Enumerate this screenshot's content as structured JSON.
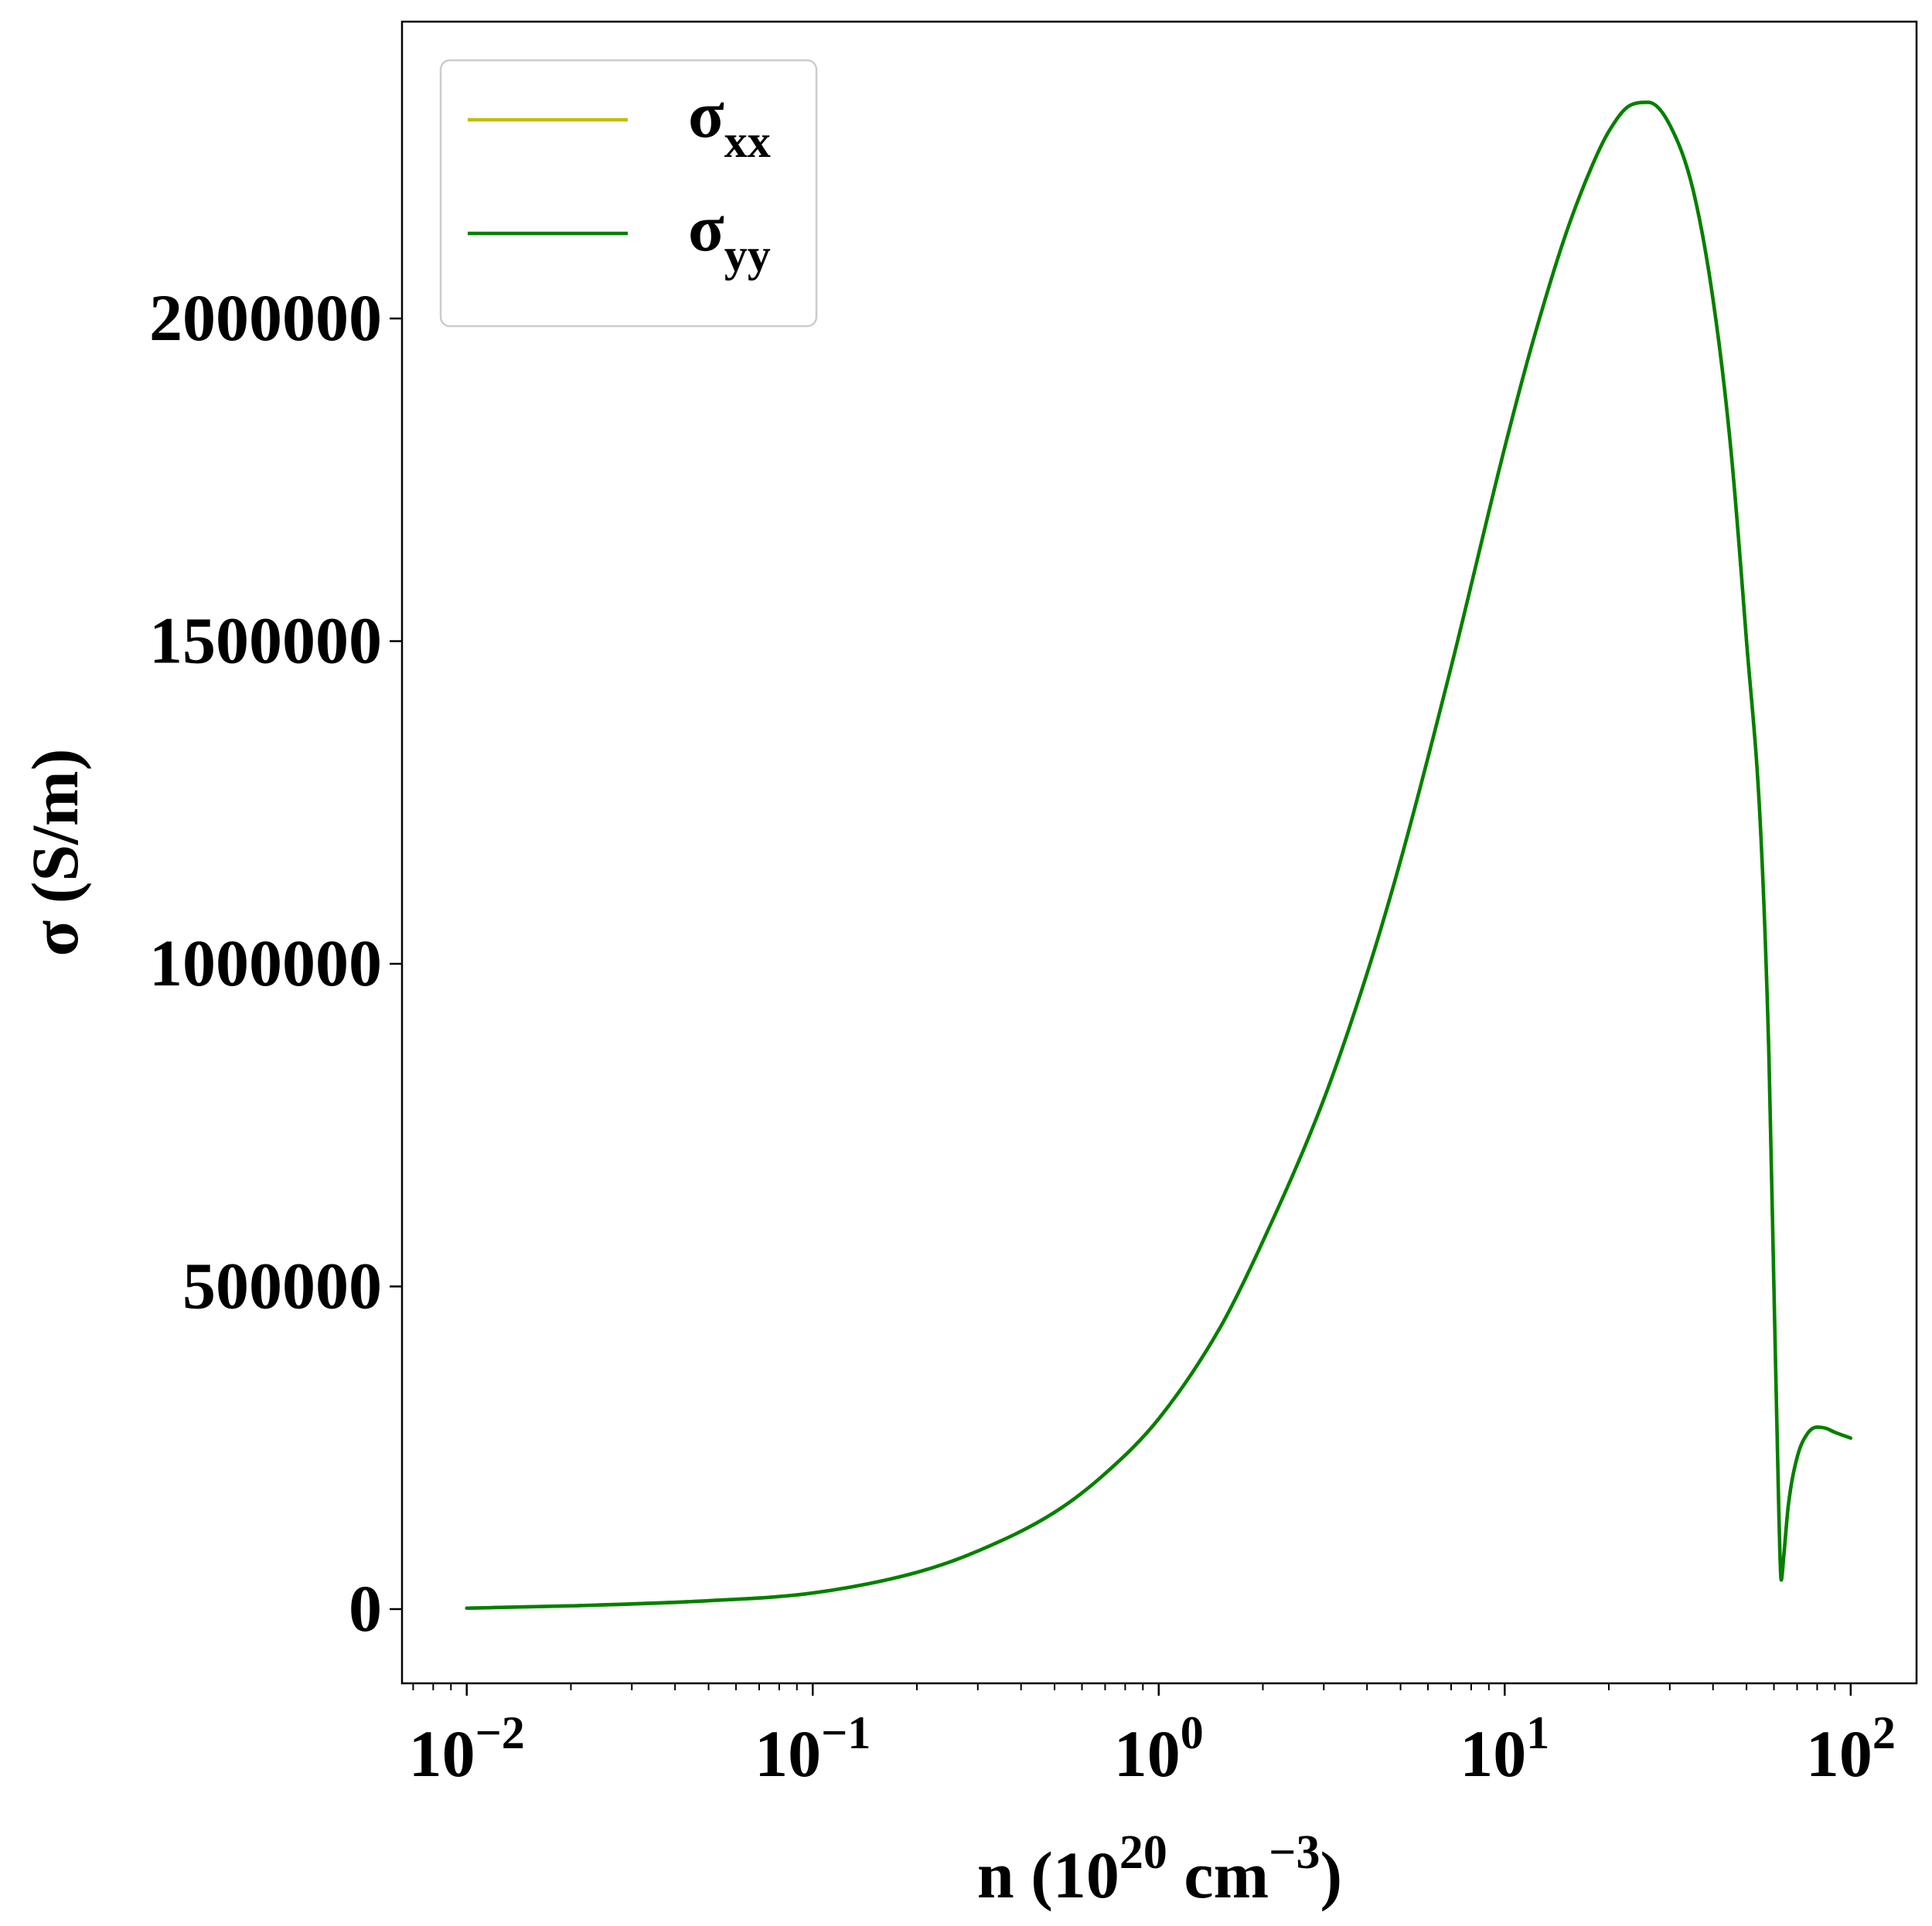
{
  "chart_data": {
    "type": "line",
    "xlabel": {
      "base": "n (10",
      "exp1": "20",
      "mid": " cm",
      "exp2": "−3",
      "tail": ")"
    },
    "ylabel": "σ (S/m)",
    "x_scale": "log",
    "xlim": [
      0.0065,
      155
    ],
    "ylim": [
      -115000,
      2460000
    ],
    "x_ticks": [
      {
        "value": 0.01,
        "base": "10",
        "exp": "−2"
      },
      {
        "value": 0.1,
        "base": "10",
        "exp": "−1"
      },
      {
        "value": 1,
        "base": "10",
        "exp": "0"
      },
      {
        "value": 10,
        "base": "10",
        "exp": "1"
      },
      {
        "value": 100,
        "base": "10",
        "exp": "2"
      }
    ],
    "y_ticks": [
      {
        "value": 0,
        "label": "0"
      },
      {
        "value": 500000,
        "label": "500000"
      },
      {
        "value": 1000000,
        "label": "1000000"
      },
      {
        "value": 1500000,
        "label": "1500000"
      },
      {
        "value": 2000000,
        "label": "2000000"
      }
    ],
    "grid": false,
    "legend_position": "top-left",
    "series": [
      {
        "name": "σ",
        "subscript": "xx",
        "color": "#bfbf00",
        "x": [
          0.01,
          0.02,
          0.05,
          0.1,
          0.2,
          0.3,
          0.5,
          0.7,
          1.0,
          1.5,
          2.0,
          3.0,
          4.0,
          5.0,
          7.0,
          10.0,
          12.0,
          15.0,
          18.0,
          20.0,
          23.0,
          26.0,
          30.0,
          35.0,
          40.0,
          45.0,
          50.0,
          55.0,
          58.0,
          60.0,
          62.0,
          63.0,
          64.0,
          66.0,
          70.0,
          75.0,
          80.0,
          85.0,
          90.0,
          100.0
        ],
        "y": [
          1500,
          5000,
          13000,
          25000,
          57000,
          90000,
          150000,
          210000,
          295000,
          435000,
          570000,
          790000,
          985000,
          1160000,
          1460000,
          1800000,
          1960000,
          2130000,
          2240000,
          2290000,
          2330000,
          2335000,
          2300000,
          2200000,
          2030000,
          1800000,
          1500000,
          1200000,
          860000,
          500000,
          150000,
          45000,
          80000,
          160000,
          235000,
          272000,
          282000,
          280000,
          274000,
          265000
        ]
      },
      {
        "name": "σ",
        "subscript": "yy",
        "color": "#008000",
        "x": [
          0.01,
          0.02,
          0.05,
          0.1,
          0.2,
          0.3,
          0.5,
          0.7,
          1.0,
          1.5,
          2.0,
          3.0,
          4.0,
          5.0,
          7.0,
          10.0,
          12.0,
          15.0,
          18.0,
          20.0,
          23.0,
          26.0,
          30.0,
          35.0,
          40.0,
          45.0,
          50.0,
          55.0,
          58.0,
          60.0,
          62.0,
          63.0,
          64.0,
          66.0,
          70.0,
          75.0,
          80.0,
          85.0,
          90.0,
          100.0
        ],
        "y": [
          1500,
          5000,
          13000,
          25000,
          57000,
          90000,
          150000,
          210000,
          295000,
          435000,
          570000,
          790000,
          985000,
          1160000,
          1460000,
          1800000,
          1960000,
          2130000,
          2240000,
          2290000,
          2330000,
          2335000,
          2300000,
          2200000,
          2030000,
          1800000,
          1500000,
          1200000,
          860000,
          500000,
          150000,
          45000,
          80000,
          160000,
          235000,
          272000,
          282000,
          280000,
          274000,
          265000
        ]
      }
    ]
  }
}
